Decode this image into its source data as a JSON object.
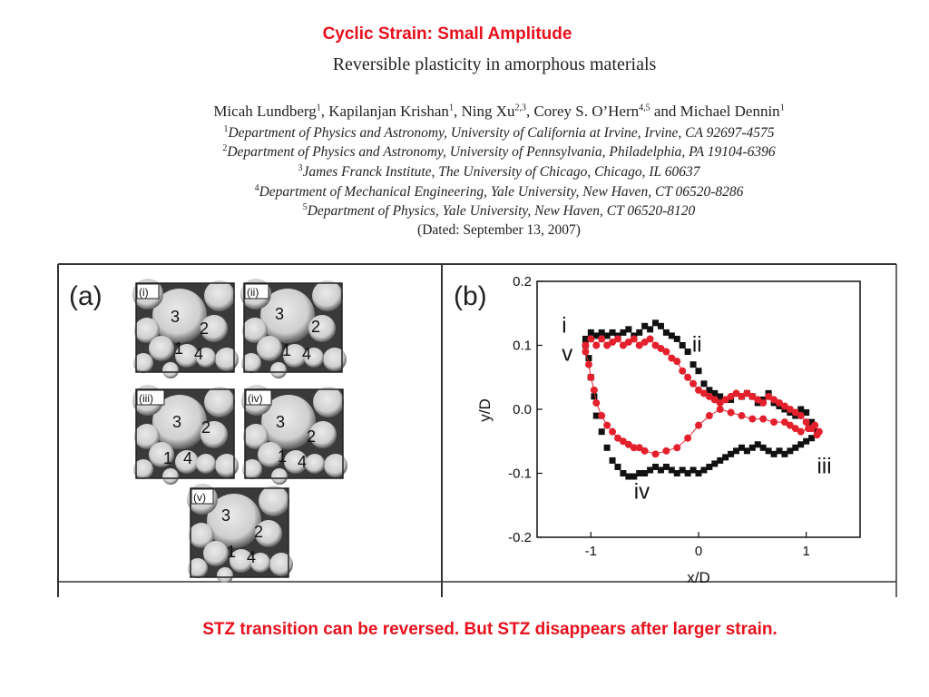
{
  "slide_title": "Cyclic Strain: Small Amplitude",
  "paper": {
    "title": "Reversible plasticity in amorphous materials",
    "authors": [
      {
        "name": "Micah Lundberg",
        "sup": "1"
      },
      {
        "name": "Kapilanjan Krishan",
        "sup": "1"
      },
      {
        "name": "Ning Xu",
        "sup": "2,3"
      },
      {
        "name": "Corey S. O’Hern",
        "sup": "4,5"
      },
      {
        "name": "and Michael Dennin",
        "sup": "1"
      }
    ],
    "affiliations": [
      {
        "sup": "1",
        "text": "Department of Physics and Astronomy, University of California at Irvine, Irvine, CA 92697-4575"
      },
      {
        "sup": "2",
        "text": "Department of Physics and Astronomy, University of Pennsylvania, Philadelphia, PA 19104-6396"
      },
      {
        "sup": "3",
        "text": "James Franck Institute, The University of Chicago, Chicago, IL 60637"
      },
      {
        "sup": "4",
        "text": "Department of Mechanical Engineering, Yale University, New Haven, CT 06520-8286"
      },
      {
        "sup": "5",
        "text": "Department of Physics, Yale University, New Haven, CT 06520-8120"
      }
    ],
    "dated": "(Dated: September 13, 2007)"
  },
  "figure_a": {
    "label": "(a)",
    "panels": [
      {
        "tag": "(i)",
        "bubbles": [
          "3",
          "2",
          "1",
          "4"
        ]
      },
      {
        "tag": "(ii)",
        "bubbles": [
          "3",
          "2",
          "1",
          "4"
        ]
      },
      {
        "tag": "(iii)",
        "bubbles": [
          "3",
          "2",
          "1",
          "4"
        ]
      },
      {
        "tag": "(iv)",
        "bubbles": [
          "3",
          "2",
          "1",
          "4"
        ]
      },
      {
        "tag": "(v)",
        "bubbles": [
          "3",
          "2",
          "1",
          "4"
        ]
      }
    ]
  },
  "chart_data": {
    "type": "scatter",
    "panel_label": "(b)",
    "xlabel": "x/D",
    "ylabel": "y/D",
    "xlim": [
      -1.5,
      1.5
    ],
    "ylim": [
      -0.2,
      0.2
    ],
    "xticks": [
      "-1",
      "0",
      "1"
    ],
    "yticks": [
      "0.2",
      "0.1",
      "0.0",
      "-0.1",
      "-0.2"
    ],
    "grid": false,
    "annotations": [
      {
        "text": "i",
        "x": -1.27,
        "y": 0.12
      },
      {
        "text": "v",
        "x": -1.27,
        "y": 0.076
      },
      {
        "text": "ii",
        "x": -0.06,
        "y": 0.09
      },
      {
        "text": "iii",
        "x": 1.1,
        "y": -0.1
      },
      {
        "text": "iv",
        "x": -0.6,
        "y": -0.14
      }
    ],
    "series": [
      {
        "name": "black squares",
        "color": "#111111",
        "marker": "square",
        "points": [
          [
            -1.05,
            0.11
          ],
          [
            -1.0,
            0.12
          ],
          [
            -0.95,
            0.115
          ],
          [
            -0.9,
            0.12
          ],
          [
            -0.85,
            0.115
          ],
          [
            -0.8,
            0.12
          ],
          [
            -0.75,
            0.115
          ],
          [
            -0.7,
            0.12
          ],
          [
            -0.65,
            0.125
          ],
          [
            -0.6,
            0.115
          ],
          [
            -0.55,
            0.12
          ],
          [
            -0.5,
            0.13
          ],
          [
            -0.45,
            0.125
          ],
          [
            -0.4,
            0.135
          ],
          [
            -0.35,
            0.13
          ],
          [
            -0.3,
            0.12
          ],
          [
            -0.25,
            0.115
          ],
          [
            -0.2,
            0.11
          ],
          [
            -0.15,
            0.1
          ],
          [
            -0.1,
            0.09
          ],
          [
            -0.05,
            0.07
          ],
          [
            0.0,
            0.06
          ],
          [
            0.05,
            0.04
          ],
          [
            0.1,
            0.03
          ],
          [
            0.15,
            0.025
          ],
          [
            0.2,
            0.02
          ],
          [
            0.3,
            0.015
          ],
          [
            0.4,
            0.02
          ],
          [
            0.45,
            0.025
          ],
          [
            0.5,
            0.02
          ],
          [
            0.55,
            0.01
          ],
          [
            0.6,
            0.015
          ],
          [
            0.65,
            0.025
          ],
          [
            0.7,
            0.01
          ],
          [
            0.75,
            0.005
          ],
          [
            0.8,
            0.0
          ],
          [
            0.85,
            -0.005
          ],
          [
            0.9,
            -0.01
          ],
          [
            0.95,
            0.0
          ],
          [
            1.0,
            -0.005
          ],
          [
            1.05,
            -0.02
          ],
          [
            1.1,
            -0.035
          ],
          [
            1.05,
            -0.045
          ],
          [
            1.0,
            -0.05
          ],
          [
            0.95,
            -0.055
          ],
          [
            0.9,
            -0.06
          ],
          [
            0.85,
            -0.065
          ],
          [
            0.8,
            -0.07
          ],
          [
            0.75,
            -0.065
          ],
          [
            0.7,
            -0.07
          ],
          [
            0.65,
            -0.065
          ],
          [
            0.6,
            -0.06
          ],
          [
            0.55,
            -0.055
          ],
          [
            0.5,
            -0.06
          ],
          [
            0.45,
            -0.065
          ],
          [
            0.4,
            -0.06
          ],
          [
            0.35,
            -0.065
          ],
          [
            0.3,
            -0.07
          ],
          [
            0.25,
            -0.075
          ],
          [
            0.2,
            -0.08
          ],
          [
            0.15,
            -0.085
          ],
          [
            0.1,
            -0.09
          ],
          [
            0.05,
            -0.095
          ],
          [
            0.0,
            -0.1
          ],
          [
            -0.05,
            -0.095
          ],
          [
            -0.1,
            -0.1
          ],
          [
            -0.15,
            -0.095
          ],
          [
            -0.2,
            -0.1
          ],
          [
            -0.25,
            -0.095
          ],
          [
            -0.3,
            -0.09
          ],
          [
            -0.35,
            -0.095
          ],
          [
            -0.4,
            -0.09
          ],
          [
            -0.45,
            -0.095
          ],
          [
            -0.5,
            -0.1
          ],
          [
            -0.55,
            -0.1
          ],
          [
            -0.6,
            -0.105
          ],
          [
            -0.65,
            -0.105
          ],
          [
            -0.7,
            -0.1
          ],
          [
            -0.75,
            -0.09
          ],
          [
            -0.8,
            -0.08
          ],
          [
            -0.85,
            -0.06
          ],
          [
            -0.9,
            -0.035
          ],
          [
            -0.95,
            -0.01
          ],
          [
            -0.97,
            0.02
          ],
          [
            -1.0,
            0.05
          ],
          [
            -1.02,
            0.08
          ],
          [
            -1.05,
            0.1
          ]
        ]
      },
      {
        "name": "red circles",
        "color": "#e3202c",
        "marker": "circle",
        "points": [
          [
            -1.05,
            0.1
          ],
          [
            -1.0,
            0.11
          ],
          [
            -0.95,
            0.1
          ],
          [
            -0.9,
            0.11
          ],
          [
            -0.85,
            0.1
          ],
          [
            -0.8,
            0.105
          ],
          [
            -0.75,
            0.11
          ],
          [
            -0.7,
            0.1
          ],
          [
            -0.65,
            0.105
          ],
          [
            -0.6,
            0.11
          ],
          [
            -0.55,
            0.1
          ],
          [
            -0.5,
            0.105
          ],
          [
            -0.45,
            0.11
          ],
          [
            -0.4,
            0.1
          ],
          [
            -0.35,
            0.095
          ],
          [
            -0.3,
            0.09
          ],
          [
            -0.25,
            0.08
          ],
          [
            -0.2,
            0.075
          ],
          [
            -0.15,
            0.06
          ],
          [
            -0.1,
            0.05
          ],
          [
            -0.05,
            0.04
          ],
          [
            0.0,
            0.03
          ],
          [
            0.05,
            0.025
          ],
          [
            0.1,
            0.02
          ],
          [
            0.15,
            0.015
          ],
          [
            0.2,
            0.01
          ],
          [
            0.25,
            0.015
          ],
          [
            0.3,
            0.02
          ],
          [
            0.35,
            0.025
          ],
          [
            0.4,
            0.02
          ],
          [
            0.45,
            0.025
          ],
          [
            0.5,
            0.02
          ],
          [
            0.55,
            0.015
          ],
          [
            0.6,
            0.01
          ],
          [
            0.65,
            0.02
          ],
          [
            0.7,
            0.015
          ],
          [
            0.75,
            0.01
          ],
          [
            0.8,
            0.005
          ],
          [
            0.85,
            0.0
          ],
          [
            0.9,
            -0.005
          ],
          [
            0.95,
            -0.01
          ],
          [
            1.0,
            -0.02
          ],
          [
            1.05,
            -0.03
          ],
          [
            1.1,
            -0.04
          ],
          [
            1.12,
            -0.035
          ],
          [
            1.08,
            -0.025
          ],
          [
            1.02,
            -0.03
          ],
          [
            0.95,
            -0.035
          ],
          [
            0.9,
            -0.03
          ],
          [
            0.85,
            -0.025
          ],
          [
            0.8,
            -0.02
          ],
          [
            0.7,
            -0.02
          ],
          [
            0.6,
            -0.015
          ],
          [
            0.5,
            -0.015
          ],
          [
            0.4,
            -0.01
          ],
          [
            0.3,
            -0.005
          ],
          [
            0.2,
            0.0
          ],
          [
            0.1,
            -0.01
          ],
          [
            0.0,
            -0.025
          ],
          [
            -0.1,
            -0.045
          ],
          [
            -0.2,
            -0.06
          ],
          [
            -0.3,
            -0.065
          ],
          [
            -0.4,
            -0.07
          ],
          [
            -0.5,
            -0.065
          ],
          [
            -0.55,
            -0.06
          ],
          [
            -0.6,
            -0.06
          ],
          [
            -0.65,
            -0.055
          ],
          [
            -0.7,
            -0.05
          ],
          [
            -0.75,
            -0.045
          ],
          [
            -0.8,
            -0.035
          ],
          [
            -0.85,
            -0.025
          ],
          [
            -0.9,
            -0.01
          ],
          [
            -0.95,
            0.01
          ],
          [
            -0.97,
            0.03
          ],
          [
            -1.0,
            0.05
          ],
          [
            -1.02,
            0.07
          ],
          [
            -1.05,
            0.09
          ]
        ]
      }
    ]
  }
}
